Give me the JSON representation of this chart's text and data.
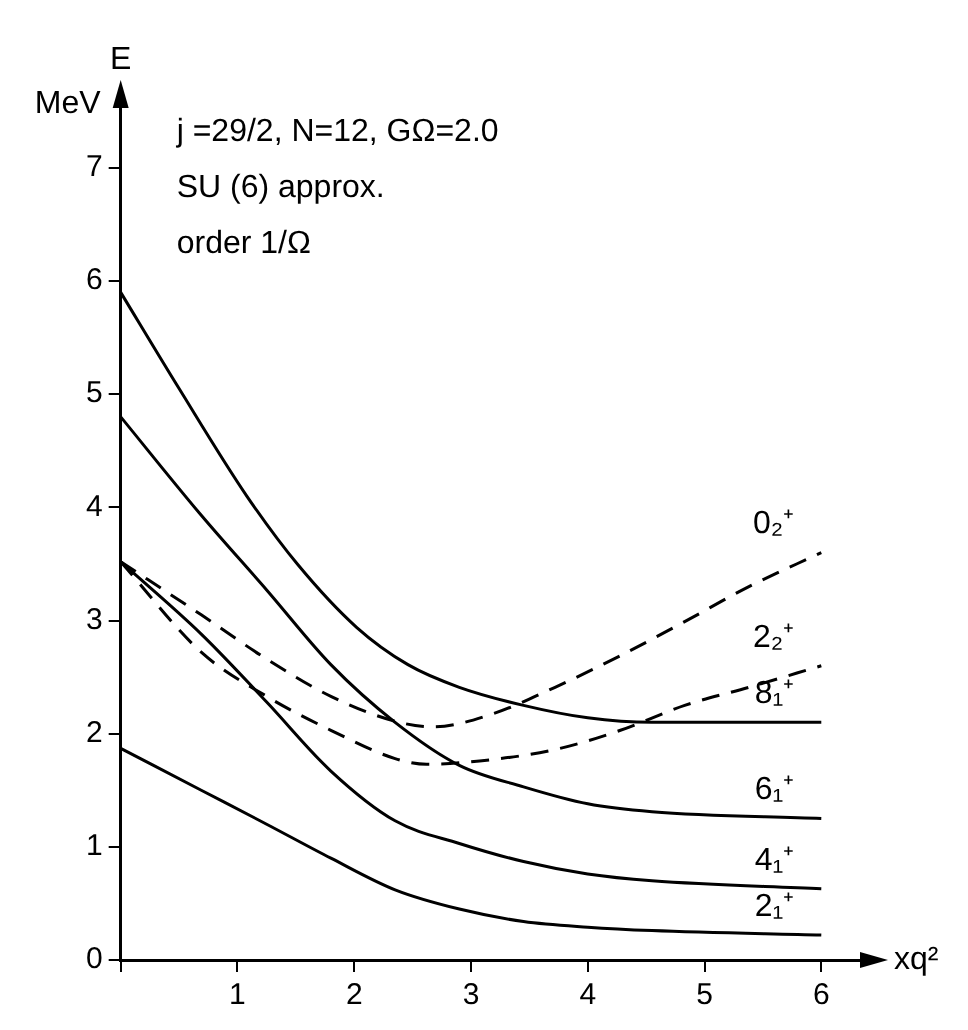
{
  "chart_data": {
    "type": "line",
    "ylabel": "E",
    "xlabel": "xq²",
    "annotations": [
      "MeV",
      "j =29/2, N=12, GΩ=2.0",
      "SU (6) approx.",
      "order 1/Ω"
    ],
    "xlim": [
      0,
      6.4
    ],
    "ylim": [
      0,
      7.6
    ],
    "xticks": [
      {
        "value": 0,
        "label": null
      },
      1,
      2,
      3,
      4,
      5,
      6
    ],
    "yticks": [
      0,
      1,
      2,
      3,
      4,
      5,
      6,
      7
    ],
    "grid": false,
    "legend": false,
    "marker": "none",
    "series": [
      {
        "name": "0₂⁺",
        "color": "#000000",
        "line_style": "dashed",
        "x": [
          0,
          0.69,
          1.25,
          1.8,
          2.35,
          2.68,
          3.17,
          3.72,
          4.28,
          4.83,
          5.38,
          6
        ],
        "values": [
          3.52,
          3.05,
          2.66,
          2.33,
          2.11,
          2.06,
          2.17,
          2.41,
          2.69,
          2.99,
          3.3,
          3.6
        ]
      },
      {
        "name": "2₂⁺",
        "color": "#000000",
        "line_style": "dashed",
        "x": [
          0,
          0.69,
          1.25,
          1.8,
          2.35,
          2.62,
          3.17,
          3.72,
          4.28,
          4.83,
          5.38,
          6
        ],
        "values": [
          3.52,
          2.72,
          2.33,
          2.03,
          1.78,
          1.73,
          1.77,
          1.86,
          2.03,
          2.25,
          2.41,
          2.6
        ]
      },
      {
        "name": "8₁⁺",
        "color": "#000000",
        "line_style": "solid",
        "x": [
          0,
          0.5,
          1.08,
          1.52,
          2.02,
          2.46,
          2.9,
          3.45,
          4,
          4.55,
          6
        ],
        "values": [
          5.9,
          5.05,
          4.1,
          3.49,
          2.94,
          2.61,
          2.41,
          2.25,
          2.14,
          2.1,
          2.1
        ]
      },
      {
        "name": "6₁⁺",
        "color": "#000000",
        "line_style": "solid",
        "x": [
          0,
          0.69,
          1.25,
          1.8,
          2.35,
          2.9,
          3.45,
          4,
          4.55,
          6
        ],
        "values": [
          4.8,
          3.93,
          3.27,
          2.61,
          2.1,
          1.72,
          1.53,
          1.38,
          1.31,
          1.25
        ]
      },
      {
        "name": "4₁⁺",
        "color": "#000000",
        "line_style": "solid",
        "x": [
          0,
          0.69,
          1.25,
          1.8,
          2.35,
          2.9,
          3.45,
          4,
          4.55,
          6
        ],
        "values": [
          3.52,
          2.88,
          2.28,
          1.67,
          1.23,
          1.03,
          0.87,
          0.76,
          0.7,
          0.63
        ]
      },
      {
        "name": "2₁⁺",
        "color": "#000000",
        "line_style": "solid",
        "x": [
          0,
          0.69,
          1.25,
          1.8,
          2.35,
          2.9,
          3.45,
          4,
          4.55,
          6
        ],
        "values": [
          1.87,
          1.5,
          1.2,
          0.9,
          0.62,
          0.45,
          0.34,
          0.29,
          0.26,
          0.22
        ]
      }
    ]
  }
}
